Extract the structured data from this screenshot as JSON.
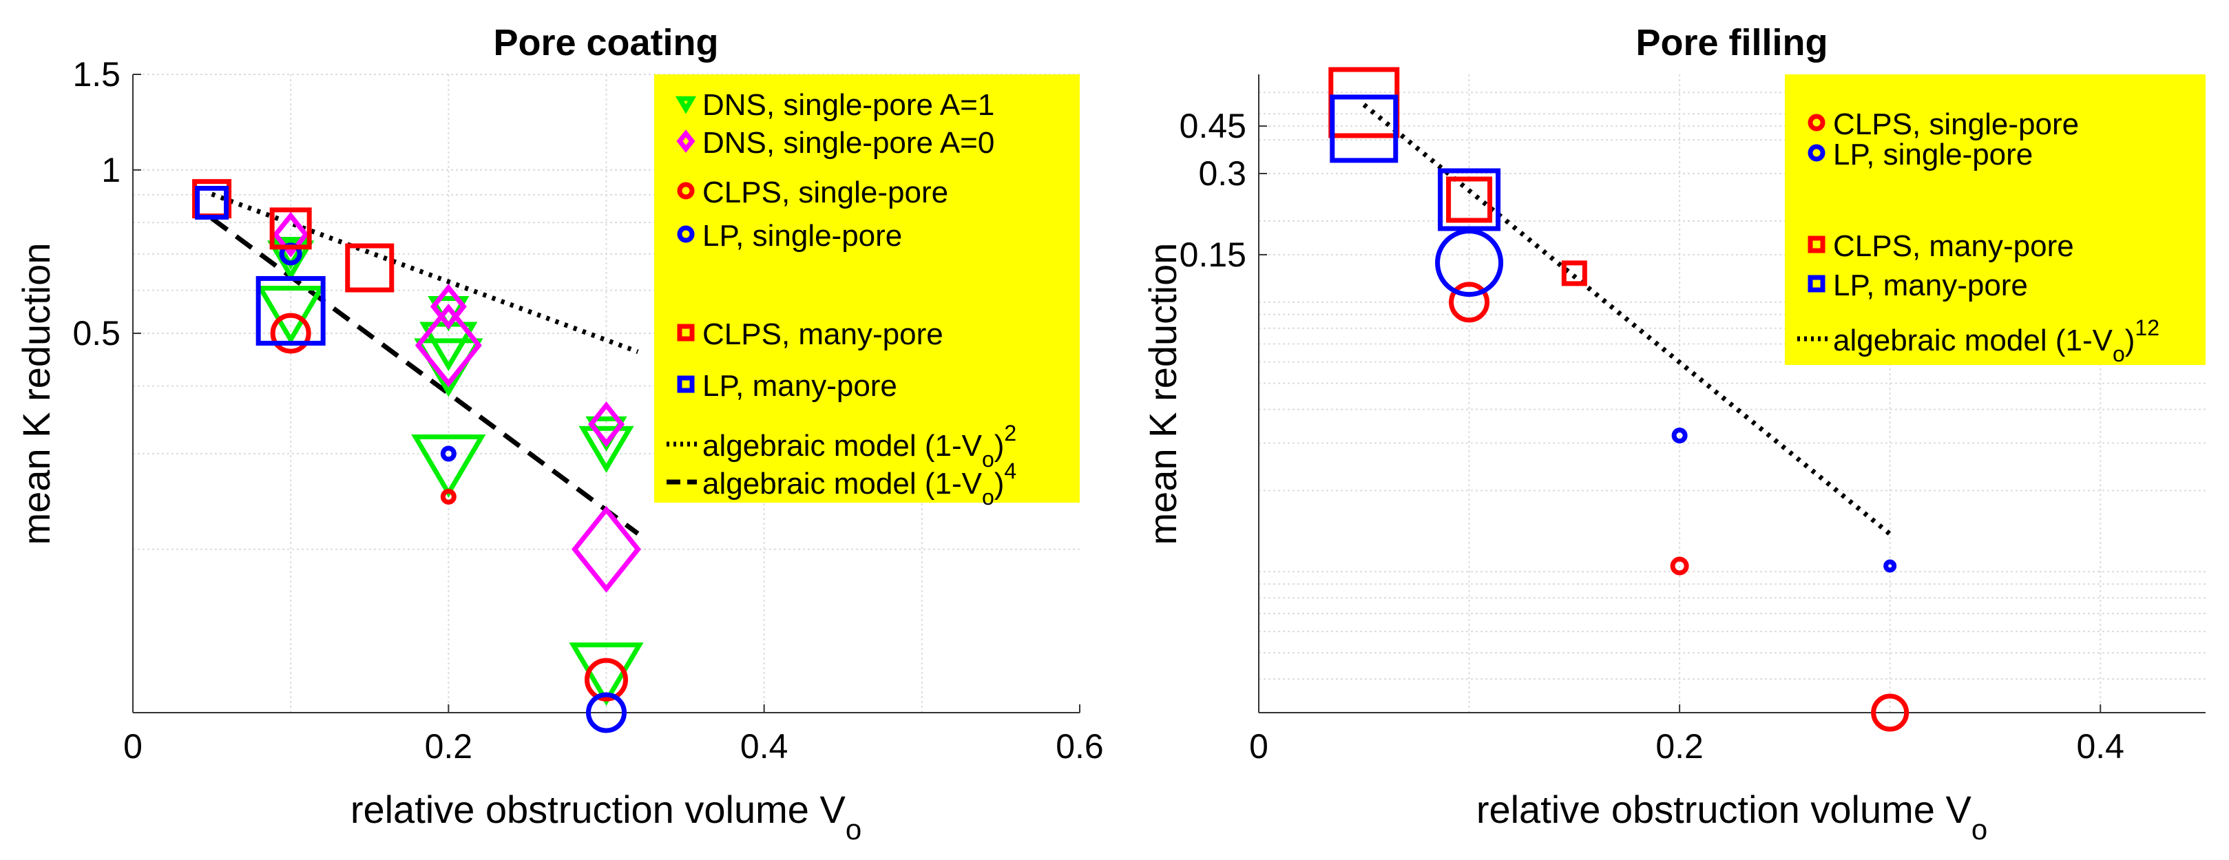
{
  "chart_data": [
    {
      "type": "scatter",
      "title": "Pore coating",
      "xlabel": "relative obstruction volume V",
      "xlabel_sub": "o",
      "ylabel": "mean K reduction",
      "yscale": "log",
      "xlim": [
        0,
        0.6
      ],
      "ylim": [
        0.1,
        1.5
      ],
      "xticks": [
        0,
        0.2,
        0.4,
        0.6
      ],
      "xtick_labels": [
        "0",
        "0.2",
        "0.4",
        "0.6"
      ],
      "yticks": [
        0.5,
        1,
        1.5
      ],
      "ytick_labels": [
        "0.5",
        "1",
        "1.5"
      ],
      "series": [
        {
          "name": "DNS, single-pore A=1",
          "marker": "triangle-down",
          "color": "#00ee00",
          "points": [
            [
              0.1,
              0.71,
              22
            ],
            [
              0.1,
              0.69,
              28
            ],
            [
              0.1,
              0.55,
              44
            ],
            [
              0.2,
              0.55,
              24
            ],
            [
              0.2,
              0.48,
              36
            ],
            [
              0.2,
              0.44,
              44
            ],
            [
              0.2,
              0.29,
              48
            ],
            [
              0.3,
              0.33,
              24
            ],
            [
              0.3,
              0.31,
              34
            ],
            [
              0.3,
              0.12,
              48
            ]
          ]
        },
        {
          "name": "DNS, single-pore A=0",
          "marker": "diamond",
          "color": "#ff00ff",
          "points": [
            [
              0.1,
              0.76,
              22
            ],
            [
              0.2,
              0.56,
              22
            ],
            [
              0.2,
              0.475,
              44
            ],
            [
              0.3,
              0.34,
              22
            ],
            [
              0.3,
              0.2,
              46
            ]
          ]
        },
        {
          "name": "CLPS, single-pore",
          "marker": "circle",
          "color": "#ff0000",
          "points": [
            [
              0.1,
              0.5,
              26
            ],
            [
              0.2,
              0.25,
              8
            ],
            [
              0.3,
              0.115,
              28
            ]
          ]
        },
        {
          "name": "LP, single-pore",
          "marker": "circle",
          "color": "#0000ff",
          "points": [
            [
              0.1,
              0.7,
              13
            ],
            [
              0.2,
              0.3,
              8
            ],
            [
              0.3,
              0.1,
              26
            ]
          ]
        },
        {
          "name": "CLPS, many-pore",
          "marker": "square",
          "color": "#ff0000",
          "points": [
            [
              0.05,
              0.885,
              25
            ],
            [
              0.1,
              0.78,
              27
            ],
            [
              0.15,
              0.66,
              32
            ]
          ]
        },
        {
          "name": "LP, many-pore",
          "marker": "square",
          "color": "#0000ff",
          "points": [
            [
              0.05,
              0.87,
              21
            ],
            [
              0.1,
              0.55,
              47
            ]
          ]
        }
      ],
      "lines": [
        {
          "name": "algebraic model (1-V",
          "sub": "o",
          "tail": ")",
          "sup": "2",
          "style": "dotted",
          "color": "#000000",
          "x": [
            0.05,
            0.32
          ],
          "y": [
            0.9025,
            0.4624
          ]
        },
        {
          "name": "algebraic model (1-V",
          "sub": "o",
          "tail": ")",
          "sup": "4",
          "style": "dashed",
          "color": "#000000",
          "x": [
            0.05,
            0.32
          ],
          "y": [
            0.8145,
            0.2138
          ]
        }
      ],
      "legend": "top-right",
      "legend_bg": "#ffff00",
      "grid": true
    },
    {
      "type": "scatter",
      "title": "Pore filling",
      "xlabel": "relative obstruction volume V",
      "xlabel_sub": "o",
      "ylabel": "mean K reduction",
      "yscale": "log",
      "xlim": [
        0,
        0.45
      ],
      "ylim": [
        0.003,
        0.7
      ],
      "xticks": [
        0,
        0.2,
        0.4
      ],
      "xtick_labels": [
        "0",
        "0.2",
        "0.4"
      ],
      "yticks": [
        0.15,
        0.3,
        0.45
      ],
      "ytick_labels": [
        "0.15",
        "0.3",
        "0.45"
      ],
      "series": [
        {
          "name": "CLPS, single-pore",
          "marker": "circle",
          "color": "#ff0000",
          "points": [
            [
              0.1,
              0.1,
              26
            ],
            [
              0.2,
              0.0105,
              10
            ],
            [
              0.3,
              0.003,
              24
            ]
          ]
        },
        {
          "name": "LP, single-pore",
          "marker": "circle",
          "color": "#0000ff",
          "points": [
            [
              0.1,
              0.14,
              46
            ],
            [
              0.2,
              0.032,
              8
            ],
            [
              0.3,
              0.0105,
              6
            ]
          ]
        },
        {
          "name": "CLPS, many-pore",
          "marker": "square",
          "color": "#ff0000",
          "points": [
            [
              0.05,
              0.55,
              48
            ],
            [
              0.1,
              0.24,
              30
            ],
            [
              0.15,
              0.128,
              15
            ]
          ]
        },
        {
          "name": "LP, many-pore",
          "marker": "square",
          "color": "#0000ff",
          "points": [
            [
              0.05,
              0.44,
              46
            ],
            [
              0.1,
              0.24,
              42
            ]
          ]
        }
      ],
      "lines": [
        {
          "name": "algebraic model (1-V",
          "sub": "o",
          "tail": ")",
          "sup": "12",
          "style": "dotted",
          "color": "#000000",
          "x": [
            0.05,
            0.3
          ],
          "y": [
            0.54,
            0.0138
          ]
        }
      ],
      "legend": "top-right",
      "legend_bg": "#ffff00",
      "grid": true
    }
  ]
}
